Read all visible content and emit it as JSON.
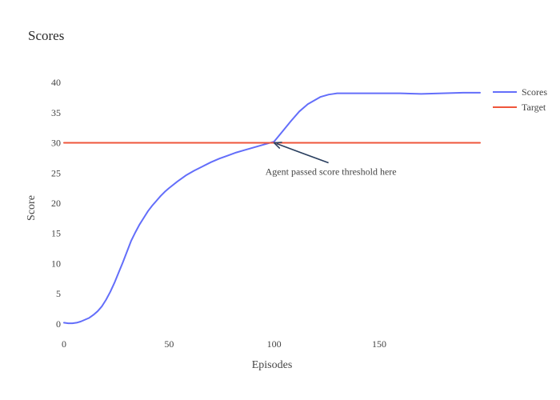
{
  "colors": {
    "scores": "#636efa",
    "target": "#ef553b",
    "annotation_arrow": "#2a3f5f"
  },
  "legend": {
    "placement": "top-right",
    "items": [
      "Scores",
      "Target"
    ]
  },
  "chart_data": {
    "type": "line",
    "title": "Scores",
    "xlabel": "Episodes",
    "ylabel": "Score",
    "xlim": [
      0,
      198
    ],
    "ylim": [
      -2,
      42
    ],
    "x_ticks": [
      0,
      50,
      100,
      150
    ],
    "y_ticks": [
      0,
      5,
      10,
      15,
      20,
      25,
      30,
      35,
      40
    ],
    "grid": false,
    "series": [
      {
        "name": "Scores",
        "x": [
          0,
          2,
          4,
          6,
          8,
          10,
          12,
          14,
          16,
          18,
          20,
          22,
          24,
          26,
          28,
          30,
          32,
          34,
          36,
          38,
          40,
          42,
          44,
          46,
          48,
          50,
          54,
          58,
          62,
          66,
          70,
          74,
          78,
          82,
          86,
          90,
          94,
          98,
          100,
          104,
          108,
          112,
          116,
          120,
          122,
          124,
          126,
          128,
          130,
          132,
          134,
          140,
          150,
          160,
          170,
          180,
          190,
          198
        ],
        "y": [
          0.2,
          0.1,
          0.1,
          0.2,
          0.4,
          0.7,
          1.0,
          1.5,
          2.1,
          2.9,
          4.0,
          5.3,
          6.8,
          8.5,
          10.2,
          12.0,
          13.8,
          15.2,
          16.5,
          17.6,
          18.7,
          19.6,
          20.4,
          21.2,
          21.9,
          22.5,
          23.6,
          24.6,
          25.4,
          26.1,
          26.8,
          27.4,
          27.9,
          28.4,
          28.8,
          29.2,
          29.6,
          30.0,
          30.2,
          31.9,
          33.6,
          35.2,
          36.4,
          37.2,
          37.6,
          37.8,
          38.0,
          38.1,
          38.2,
          38.2,
          38.2,
          38.2,
          38.2,
          38.2,
          38.1,
          38.2,
          38.3,
          38.3
        ]
      },
      {
        "name": "Target",
        "x": [
          0,
          198
        ],
        "y": [
          30,
          30
        ]
      }
    ],
    "annotations": [
      {
        "text": "Agent passed score threshold here",
        "x": 100,
        "y": 30
      }
    ]
  }
}
